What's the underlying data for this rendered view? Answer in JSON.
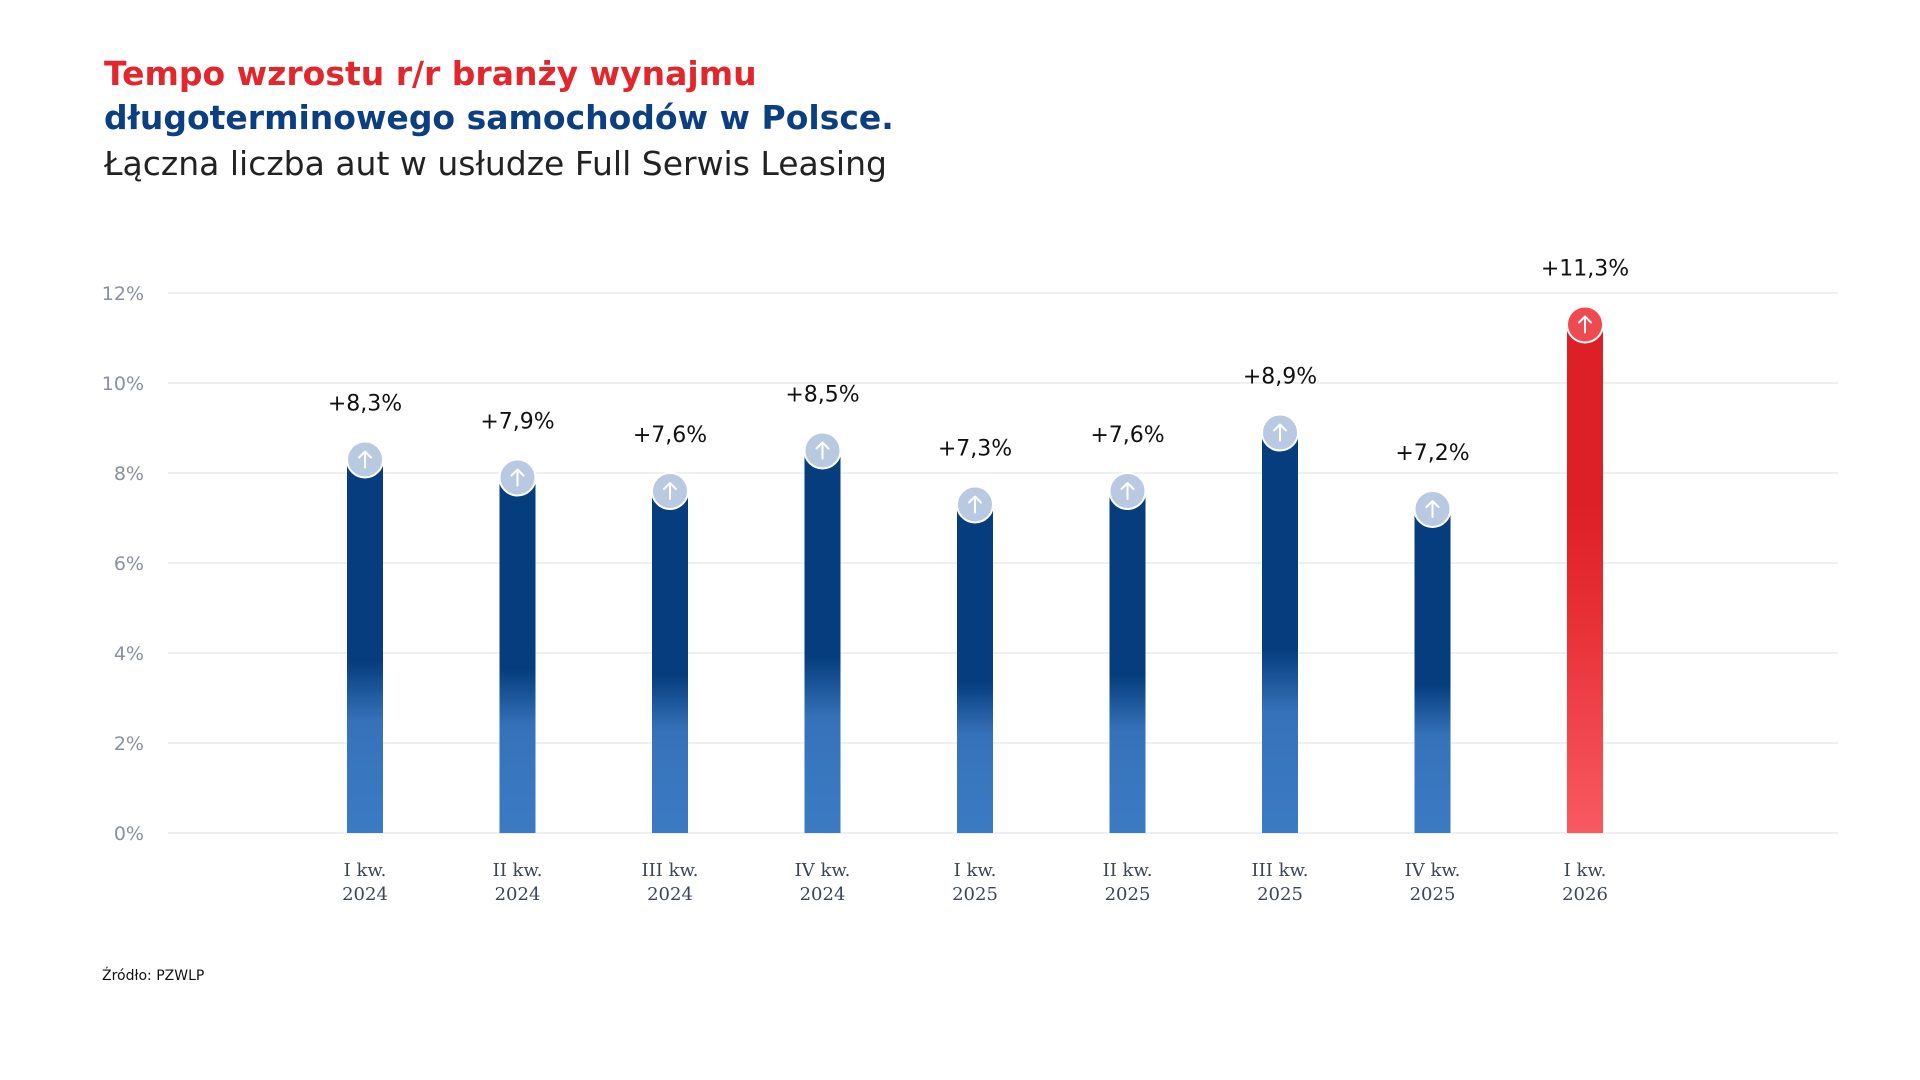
{
  "header": {
    "title_line1": "Tempo wzrostu r/r branży wynajmu",
    "title_line2": "długoterminowego samochodów w Polsce.",
    "subtitle": "Łączna liczba aut w usłudze Full Serwis Leasing"
  },
  "source": "Źródło: PZWLP",
  "colors": {
    "bar_dark": "#053d7e",
    "bar_light": "#3b7bc4",
    "highlight_dark": "#dd1f27",
    "highlight_light": "#f85a62",
    "marker_circle": "#b9c9e2",
    "marker_highlight": "#ee4a50",
    "grid": "#e6e6ea"
  },
  "chart_data": {
    "type": "bar",
    "title": "",
    "xlabel": "",
    "ylabel": "",
    "ylim": [
      0,
      12
    ],
    "yticks": [
      0,
      2,
      4,
      6,
      8,
      10,
      12
    ],
    "ytick_labels": [
      "0%",
      "2%",
      "4%",
      "6%",
      "8%",
      "10%",
      "12%"
    ],
    "grid": true,
    "categories": [
      [
        "I kw.",
        "2024"
      ],
      [
        "II kw.",
        "2024"
      ],
      [
        "III kw.",
        "2024"
      ],
      [
        "IV kw.",
        "2024"
      ],
      [
        "I kw.",
        "2025"
      ],
      [
        "II kw.",
        "2025"
      ],
      [
        "III kw.",
        "2025"
      ],
      [
        "IV kw.",
        "2025"
      ],
      [
        "I kw.",
        "2026"
      ]
    ],
    "values": [
      8.3,
      7.9,
      7.6,
      8.5,
      7.3,
      7.6,
      8.9,
      7.2,
      11.3
    ],
    "value_labels": [
      "+8,3%",
      "+7,9%",
      "+7,6%",
      "+8,5%",
      "+7,3%",
      "+7,6%",
      "+8,9%",
      "+7,2%",
      "+11,3%"
    ],
    "highlight_index": 8,
    "marker_icon": "arrow-up-icon"
  }
}
